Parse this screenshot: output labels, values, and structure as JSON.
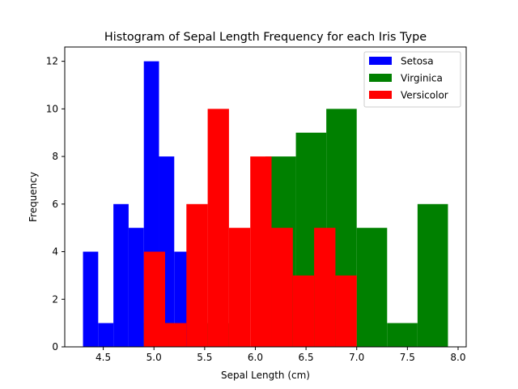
{
  "chart_data": {
    "type": "bar",
    "subtype": "histogram",
    "title": "Histogram of Sepal Length Frequency for each Iris Type",
    "xlabel": "Sepal Length (cm)",
    "ylabel": "Frequency",
    "xlim": [
      4.12,
      8.08
    ],
    "ylim": [
      0,
      12.6
    ],
    "xticks": [
      "4.5",
      "5.0",
      "5.5",
      "6.0",
      "6.5",
      "7.0",
      "7.5",
      "8.0"
    ],
    "yticks": [
      "0",
      "2",
      "4",
      "6",
      "8",
      "10",
      "12"
    ],
    "grid": false,
    "legend_position": "top-right",
    "series": [
      {
        "name": "Setosa",
        "color": "#0000ff",
        "bin_start": 4.3,
        "bin_width": 0.15,
        "values": [
          4,
          1,
          6,
          5,
          12,
          8,
          4
        ]
      },
      {
        "name": "Virginica",
        "color": "#008000",
        "bin_start": 4.9,
        "bin_width": 0.3,
        "values": [
          1,
          0,
          1,
          0,
          8,
          9,
          10,
          5,
          1,
          6
        ]
      },
      {
        "name": "Versicolor",
        "color": "#ff0000",
        "bin_start": 4.9,
        "bin_width": 0.21,
        "values": [
          4,
          1,
          6,
          10,
          5,
          8,
          5,
          3,
          5,
          3
        ]
      }
    ]
  }
}
